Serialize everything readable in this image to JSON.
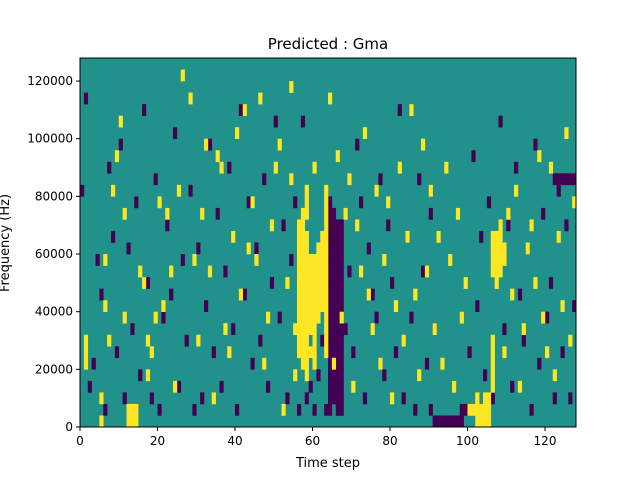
{
  "chart_data": {
    "type": "heatmap",
    "title": "Predicted : Gma",
    "xlabel": "Time step",
    "ylabel": "Frequency (Hz)",
    "xlim": [
      0,
      128
    ],
    "ylim": [
      0,
      128000
    ],
    "x_ticks": [
      0,
      20,
      40,
      60,
      80,
      100,
      120
    ],
    "y_ticks": [
      0,
      20000,
      40000,
      60000,
      80000,
      100000,
      120000
    ],
    "x_tick_labels": [
      "0",
      "20",
      "40",
      "60",
      "80",
      "100",
      "120"
    ],
    "y_tick_labels": [
      "0",
      "20000",
      "40000",
      "60000",
      "80000",
      "100000",
      "120000"
    ],
    "cell_width": 1,
    "cell_height": 4000,
    "colormap": "viridis",
    "levels": [
      -1,
      0,
      1
    ],
    "colors": {
      "low": "#440154",
      "mid": "#21918c",
      "high": "#fde725"
    },
    "background_value": 0,
    "cells_high": [
      [
        1,
        5
      ],
      [
        1,
        6
      ],
      [
        1,
        7
      ],
      [
        5,
        0
      ],
      [
        5,
        2
      ],
      [
        6,
        10
      ],
      [
        6,
        14
      ],
      [
        7,
        7
      ],
      [
        8,
        20
      ],
      [
        9,
        23
      ],
      [
        10,
        26
      ],
      [
        11,
        9
      ],
      [
        11,
        18
      ],
      [
        12,
        0
      ],
      [
        12,
        1
      ],
      [
        13,
        0
      ],
      [
        13,
        1
      ],
      [
        14,
        0
      ],
      [
        14,
        1
      ],
      [
        15,
        13
      ],
      [
        16,
        12
      ],
      [
        17,
        4
      ],
      [
        17,
        7
      ],
      [
        18,
        6
      ],
      [
        19,
        9
      ],
      [
        20,
        19
      ],
      [
        21,
        10
      ],
      [
        22,
        18
      ],
      [
        23,
        13
      ],
      [
        24,
        3
      ],
      [
        25,
        20
      ],
      [
        26,
        30
      ],
      [
        28,
        28
      ],
      [
        29,
        14
      ],
      [
        30,
        7
      ],
      [
        31,
        18
      ],
      [
        32,
        24
      ],
      [
        33,
        13
      ],
      [
        34,
        2
      ],
      [
        35,
        23
      ],
      [
        36,
        22
      ],
      [
        37,
        8
      ],
      [
        38,
        6
      ],
      [
        39,
        16
      ],
      [
        40,
        25
      ],
      [
        41,
        11
      ],
      [
        42,
        27
      ],
      [
        43,
        15
      ],
      [
        44,
        19
      ],
      [
        45,
        14
      ],
      [
        46,
        28
      ],
      [
        47,
        5
      ],
      [
        48,
        9
      ],
      [
        49,
        17
      ],
      [
        50,
        22
      ],
      [
        51,
        24
      ],
      [
        52,
        1
      ],
      [
        53,
        12
      ],
      [
        54,
        21
      ],
      [
        54,
        29
      ],
      [
        55,
        4
      ],
      [
        55,
        8
      ],
      [
        56,
        6
      ],
      [
        56,
        7
      ],
      [
        56,
        8
      ],
      [
        56,
        9
      ],
      [
        56,
        10
      ],
      [
        56,
        11
      ],
      [
        56,
        12
      ],
      [
        56,
        13
      ],
      [
        56,
        14
      ],
      [
        56,
        15
      ],
      [
        56,
        16
      ],
      [
        56,
        17
      ],
      [
        57,
        5
      ],
      [
        57,
        6
      ],
      [
        57,
        7
      ],
      [
        57,
        8
      ],
      [
        57,
        9
      ],
      [
        57,
        10
      ],
      [
        57,
        11
      ],
      [
        57,
        12
      ],
      [
        57,
        13
      ],
      [
        57,
        14
      ],
      [
        57,
        15
      ],
      [
        57,
        16
      ],
      [
        57,
        17
      ],
      [
        57,
        18
      ],
      [
        58,
        4
      ],
      [
        58,
        5
      ],
      [
        58,
        6
      ],
      [
        58,
        7
      ],
      [
        58,
        8
      ],
      [
        58,
        9
      ],
      [
        58,
        10
      ],
      [
        58,
        11
      ],
      [
        58,
        12
      ],
      [
        58,
        13
      ],
      [
        58,
        14
      ],
      [
        58,
        15
      ],
      [
        58,
        16
      ],
      [
        58,
        18
      ],
      [
        58,
        19
      ],
      [
        58,
        20
      ],
      [
        59,
        6
      ],
      [
        59,
        8
      ],
      [
        59,
        9
      ],
      [
        59,
        10
      ],
      [
        59,
        11
      ],
      [
        59,
        12
      ],
      [
        59,
        13
      ],
      [
        59,
        14
      ],
      [
        60,
        5
      ],
      [
        60,
        6
      ],
      [
        60,
        7
      ],
      [
        60,
        8
      ],
      [
        60,
        9
      ],
      [
        60,
        10
      ],
      [
        60,
        11
      ],
      [
        60,
        12
      ],
      [
        60,
        13
      ],
      [
        60,
        14
      ],
      [
        60,
        22
      ],
      [
        61,
        9
      ],
      [
        61,
        10
      ],
      [
        61,
        11
      ],
      [
        61,
        12
      ],
      [
        61,
        13
      ],
      [
        61,
        14
      ],
      [
        61,
        15
      ],
      [
        62,
        10
      ],
      [
        62,
        11
      ],
      [
        62,
        12
      ],
      [
        62,
        13
      ],
      [
        62,
        14
      ],
      [
        62,
        15
      ],
      [
        62,
        16
      ],
      [
        63,
        6
      ],
      [
        63,
        7
      ],
      [
        63,
        8
      ],
      [
        63,
        9
      ],
      [
        63,
        10
      ],
      [
        63,
        11
      ],
      [
        63,
        12
      ],
      [
        63,
        13
      ],
      [
        63,
        14
      ],
      [
        63,
        15
      ],
      [
        63,
        16
      ],
      [
        63,
        17
      ],
      [
        63,
        18
      ],
      [
        63,
        19
      ],
      [
        63,
        20
      ],
      [
        64,
        28
      ],
      [
        65,
        5
      ],
      [
        66,
        23
      ],
      [
        67,
        9
      ],
      [
        68,
        18
      ],
      [
        69,
        21
      ],
      [
        70,
        3
      ],
      [
        71,
        17
      ],
      [
        72,
        13
      ],
      [
        73,
        25
      ],
      [
        74,
        11
      ],
      [
        75,
        8
      ],
      [
        76,
        20
      ],
      [
        77,
        5
      ],
      [
        78,
        14
      ],
      [
        79,
        19
      ],
      [
        80,
        2
      ],
      [
        81,
        10
      ],
      [
        82,
        22
      ],
      [
        83,
        7
      ],
      [
        84,
        16
      ],
      [
        85,
        27
      ],
      [
        86,
        11
      ],
      [
        87,
        4
      ],
      [
        88,
        24
      ],
      [
        89,
        13
      ],
      [
        90,
        20
      ],
      [
        91,
        8
      ],
      [
        92,
        16
      ],
      [
        93,
        5
      ],
      [
        94,
        22
      ],
      [
        95,
        14
      ],
      [
        96,
        3
      ],
      [
        97,
        18
      ],
      [
        98,
        9
      ],
      [
        99,
        12
      ],
      [
        100,
        1
      ],
      [
        101,
        1
      ],
      [
        102,
        0
      ],
      [
        102,
        1
      ],
      [
        102,
        2
      ],
      [
        103,
        0
      ],
      [
        103,
        1
      ],
      [
        104,
        0
      ],
      [
        104,
        1
      ],
      [
        104,
        2
      ],
      [
        105,
        0
      ],
      [
        105,
        1
      ],
      [
        105,
        2
      ],
      [
        106,
        3
      ],
      [
        106,
        4
      ],
      [
        106,
        5
      ],
      [
        106,
        6
      ],
      [
        106,
        7
      ],
      [
        106,
        13
      ],
      [
        106,
        14
      ],
      [
        106,
        15
      ],
      [
        106,
        16
      ],
      [
        107,
        12
      ],
      [
        107,
        13
      ],
      [
        107,
        14
      ],
      [
        107,
        15
      ],
      [
        107,
        16
      ],
      [
        108,
        13
      ],
      [
        108,
        14
      ],
      [
        108,
        15
      ],
      [
        108,
        16
      ],
      [
        108,
        17
      ],
      [
        109,
        6
      ],
      [
        109,
        14
      ],
      [
        109,
        15
      ],
      [
        110,
        18
      ],
      [
        111,
        11
      ],
      [
        112,
        20
      ],
      [
        113,
        3
      ],
      [
        114,
        8
      ],
      [
        115,
        15
      ],
      [
        116,
        17
      ],
      [
        117,
        12
      ],
      [
        118,
        23
      ],
      [
        119,
        9
      ],
      [
        120,
        6
      ],
      [
        121,
        22
      ],
      [
        122,
        4
      ],
      [
        123,
        16
      ],
      [
        124,
        10
      ],
      [
        125,
        25
      ],
      [
        126,
        7
      ],
      [
        127,
        19
      ]
    ],
    "cells_low": [
      [
        0,
        20
      ],
      [
        1,
        28
      ],
      [
        2,
        3
      ],
      [
        3,
        5
      ],
      [
        4,
        14
      ],
      [
        5,
        11
      ],
      [
        6,
        1
      ],
      [
        7,
        22
      ],
      [
        8,
        16
      ],
      [
        9,
        6
      ],
      [
        10,
        24
      ],
      [
        11,
        2
      ],
      [
        12,
        15
      ],
      [
        13,
        8
      ],
      [
        14,
        19
      ],
      [
        15,
        4
      ],
      [
        16,
        27
      ],
      [
        17,
        12
      ],
      [
        18,
        2
      ],
      [
        19,
        21
      ],
      [
        20,
        1
      ],
      [
        21,
        9
      ],
      [
        22,
        17
      ],
      [
        23,
        11
      ],
      [
        24,
        25
      ],
      [
        25,
        3
      ],
      [
        26,
        14
      ],
      [
        27,
        7
      ],
      [
        28,
        20
      ],
      [
        29,
        1
      ],
      [
        30,
        15
      ],
      [
        31,
        2
      ],
      [
        32,
        10
      ],
      [
        33,
        24
      ],
      [
        34,
        6
      ],
      [
        35,
        18
      ],
      [
        36,
        3
      ],
      [
        37,
        13
      ],
      [
        38,
        22
      ],
      [
        39,
        8
      ],
      [
        40,
        1
      ],
      [
        41,
        27
      ],
      [
        42,
        11
      ],
      [
        43,
        19
      ],
      [
        44,
        5
      ],
      [
        45,
        15
      ],
      [
        46,
        7
      ],
      [
        47,
        21
      ],
      [
        48,
        3
      ],
      [
        49,
        12
      ],
      [
        50,
        26
      ],
      [
        51,
        9
      ],
      [
        52,
        17
      ],
      [
        53,
        2
      ],
      [
        54,
        14
      ],
      [
        55,
        19
      ],
      [
        56,
        1
      ],
      [
        57,
        26
      ],
      [
        58,
        2
      ],
      [
        59,
        3
      ],
      [
        60,
        1
      ],
      [
        61,
        4
      ],
      [
        62,
        7
      ],
      [
        63,
        1
      ],
      [
        64,
        1
      ],
      [
        64,
        2
      ],
      [
        64,
        3
      ],
      [
        64,
        4
      ],
      [
        64,
        5
      ],
      [
        64,
        6
      ],
      [
        64,
        7
      ],
      [
        64,
        8
      ],
      [
        64,
        9
      ],
      [
        64,
        10
      ],
      [
        64,
        11
      ],
      [
        64,
        12
      ],
      [
        64,
        13
      ],
      [
        64,
        14
      ],
      [
        64,
        15
      ],
      [
        64,
        16
      ],
      [
        64,
        17
      ],
      [
        64,
        18
      ],
      [
        64,
        19
      ],
      [
        65,
        2
      ],
      [
        65,
        3
      ],
      [
        65,
        4
      ],
      [
        65,
        5
      ],
      [
        65,
        6
      ],
      [
        65,
        7
      ],
      [
        65,
        8
      ],
      [
        65,
        9
      ],
      [
        65,
        10
      ],
      [
        65,
        11
      ],
      [
        65,
        12
      ],
      [
        65,
        13
      ],
      [
        65,
        14
      ],
      [
        65,
        15
      ],
      [
        65,
        16
      ],
      [
        65,
        17
      ],
      [
        65,
        18
      ],
      [
        66,
        1
      ],
      [
        66,
        2
      ],
      [
        66,
        3
      ],
      [
        66,
        4
      ],
      [
        66,
        5
      ],
      [
        66,
        6
      ],
      [
        66,
        7
      ],
      [
        66,
        8
      ],
      [
        66,
        9
      ],
      [
        66,
        10
      ],
      [
        66,
        11
      ],
      [
        66,
        12
      ],
      [
        66,
        13
      ],
      [
        66,
        14
      ],
      [
        66,
        15
      ],
      [
        66,
        16
      ],
      [
        66,
        17
      ],
      [
        67,
        1
      ],
      [
        67,
        2
      ],
      [
        67,
        3
      ],
      [
        67,
        4
      ],
      [
        67,
        5
      ],
      [
        67,
        6
      ],
      [
        67,
        7
      ],
      [
        67,
        8
      ],
      [
        67,
        10
      ],
      [
        67,
        11
      ],
      [
        67,
        12
      ],
      [
        67,
        13
      ],
      [
        67,
        14
      ],
      [
        67,
        15
      ],
      [
        67,
        16
      ],
      [
        67,
        17
      ],
      [
        68,
        8
      ],
      [
        69,
        13
      ],
      [
        70,
        6
      ],
      [
        71,
        24
      ],
      [
        72,
        19
      ],
      [
        73,
        2
      ],
      [
        74,
        15
      ],
      [
        75,
        11
      ],
      [
        76,
        9
      ],
      [
        77,
        21
      ],
      [
        78,
        4
      ],
      [
        79,
        17
      ],
      [
        80,
        12
      ],
      [
        81,
        6
      ],
      [
        82,
        27
      ],
      [
        83,
        2
      ],
      [
        84,
        16
      ],
      [
        85,
        9
      ],
      [
        86,
        1
      ],
      [
        87,
        21
      ],
      [
        88,
        13
      ],
      [
        89,
        5
      ],
      [
        90,
        1
      ],
      [
        90,
        18
      ],
      [
        91,
        8
      ],
      [
        91,
        0
      ],
      [
        92,
        0
      ],
      [
        93,
        0
      ],
      [
        94,
        0
      ],
      [
        95,
        0
      ],
      [
        96,
        0
      ],
      [
        97,
        0
      ],
      [
        98,
        0
      ],
      [
        98,
        1
      ],
      [
        99,
        1
      ],
      [
        100,
        6
      ],
      [
        101,
        23
      ],
      [
        102,
        10
      ],
      [
        103,
        16
      ],
      [
        104,
        4
      ],
      [
        105,
        19
      ],
      [
        106,
        2
      ],
      [
        107,
        13
      ],
      [
        108,
        26
      ],
      [
        109,
        8
      ],
      [
        110,
        17
      ],
      [
        111,
        3
      ],
      [
        112,
        22
      ],
      [
        113,
        11
      ],
      [
        114,
        7
      ],
      [
        115,
        15
      ],
      [
        116,
        1
      ],
      [
        117,
        24
      ],
      [
        118,
        5
      ],
      [
        119,
        18
      ],
      [
        120,
        9
      ],
      [
        121,
        12
      ],
      [
        122,
        2
      ],
      [
        123,
        20
      ],
      [
        124,
        6
      ],
      [
        125,
        17
      ],
      [
        126,
        2
      ],
      [
        127,
        10
      ],
      [
        122,
        21
      ],
      [
        123,
        21
      ],
      [
        124,
        21
      ],
      [
        125,
        21
      ],
      [
        126,
        21
      ],
      [
        127,
        21
      ]
    ]
  }
}
